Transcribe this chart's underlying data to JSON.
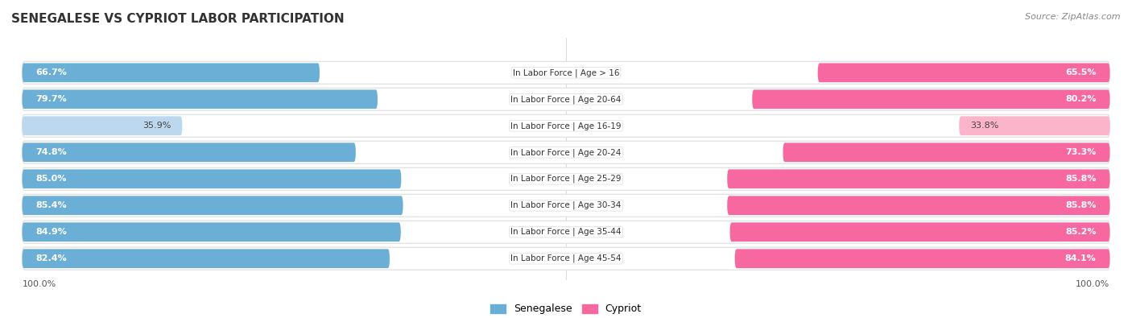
{
  "title": "SENEGALESE VS CYPRIOT LABOR PARTICIPATION",
  "source": "Source: ZipAtlas.com",
  "categories": [
    "In Labor Force | Age > 16",
    "In Labor Force | Age 20-64",
    "In Labor Force | Age 16-19",
    "In Labor Force | Age 20-24",
    "In Labor Force | Age 25-29",
    "In Labor Force | Age 30-34",
    "In Labor Force | Age 35-44",
    "In Labor Force | Age 45-54"
  ],
  "senegalese_values": [
    66.7,
    79.7,
    35.9,
    74.8,
    85.0,
    85.4,
    84.9,
    82.4
  ],
  "cypriot_values": [
    65.5,
    80.2,
    33.8,
    73.3,
    85.8,
    85.8,
    85.2,
    84.1
  ],
  "senegalese_labels": [
    "66.7%",
    "79.7%",
    "35.9%",
    "74.8%",
    "85.0%",
    "85.4%",
    "84.9%",
    "82.4%"
  ],
  "cypriot_labels": [
    "65.5%",
    "80.2%",
    "33.8%",
    "73.3%",
    "85.8%",
    "85.8%",
    "85.2%",
    "84.1%"
  ],
  "blue_dark": "#6BAED6",
  "blue_light": "#BDD7EE",
  "pink_dark": "#F768A1",
  "pink_light": "#FBB4CA",
  "bg_color": "#FFFFFF",
  "row_bg": "#F2F2F2",
  "row_outline": "#DDDDDD"
}
